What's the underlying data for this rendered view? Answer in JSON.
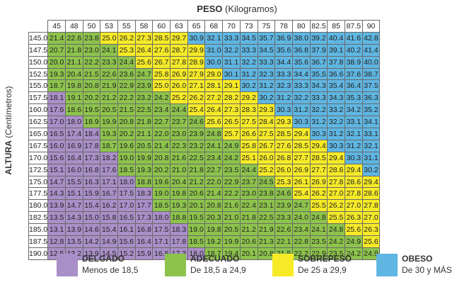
{
  "chart_data": {
    "type": "table",
    "x_title": "PESO",
    "x_unit": "(Kilogramos)",
    "y_title": "ALTURA",
    "y_unit": "(Centímetros)",
    "weights": [
      "45",
      "48",
      "50",
      "53",
      "55",
      "58",
      "60",
      "63",
      "65",
      "68",
      "70",
      "73",
      "75",
      "78",
      "80",
      "82.5",
      "85",
      "87.5",
      "90"
    ],
    "heights": [
      "145.0",
      "147.5",
      "150.0",
      "152.5",
      "155.0",
      "157.5",
      "160.0",
      "162.5",
      "165.0",
      "167.5",
      "170.0",
      "172.5",
      "175.0",
      "177.5",
      "180.0",
      "182.5",
      "185.0",
      "187.5",
      "190.0"
    ],
    "values": [
      [
        "21.4",
        "22.6",
        "23.8",
        "25.0",
        "26.2",
        "27.3",
        "28.5",
        "29.7",
        "30.9",
        "32.1",
        "33.3",
        "34.5",
        "35.7",
        "36.9",
        "38.0",
        "39.2",
        "40.4",
        "41.6",
        "42.8"
      ],
      [
        "20.7",
        "21.8",
        "23.0",
        "24.1",
        "25.3",
        "26.4",
        "27.6",
        "28.7",
        "29.9",
        "31.0",
        "32.2",
        "33.3",
        "34.5",
        "35.6",
        "36.8",
        "37.9",
        "39.1",
        "40.2",
        "41.4"
      ],
      [
        "20.0",
        "21.1",
        "22.2",
        "23.3",
        "24.4",
        "25.6",
        "26.7",
        "27.8",
        "28.9",
        "30.0",
        "31.1",
        "32.2",
        "33.3",
        "34.4",
        "35.6",
        "36.7",
        "37.8",
        "38.9",
        "40.0"
      ],
      [
        "19.3",
        "20.4",
        "21.5",
        "22.6",
        "23.6",
        "24.7",
        "25.8",
        "26.9",
        "27.9",
        "29.0",
        "30.1",
        "31.2",
        "32.3",
        "33.3",
        "34.4",
        "35.5",
        "36.6",
        "37.6",
        "38.7"
      ],
      [
        "18.7",
        "19.8",
        "20.8",
        "21.9",
        "22.9",
        "23.9",
        "25.0",
        "26.0",
        "27.1",
        "28.1",
        "29.1",
        "30.2",
        "31.2",
        "32.3",
        "33.3",
        "34.3",
        "35.4",
        "36.4",
        "37.5"
      ],
      [
        "18.1",
        "19.1",
        "20.2",
        "21.2",
        "22.2",
        "23.2",
        "24.2",
        "25.2",
        "26.2",
        "27.2",
        "28.2",
        "29.2",
        "30.2",
        "31.2",
        "32.2",
        "33.3",
        "34.3",
        "35.3",
        "36.3"
      ],
      [
        "17.6",
        "18.6",
        "19.5",
        "20.5",
        "21.5",
        "22.5",
        "23.4",
        "24.4",
        "25.4",
        "26.4",
        "27.3",
        "28.3",
        "29.3",
        "30.3",
        "31.2",
        "32.2",
        "33.2",
        "34.2",
        "35.2"
      ],
      [
        "17.0",
        "18.0",
        "18.9",
        "19.9",
        "20.8",
        "21.8",
        "22.7",
        "23.7",
        "24.6",
        "25.6",
        "26.5",
        "27.5",
        "28.4",
        "29.3",
        "30.3",
        "31.2",
        "32.2",
        "33.1",
        "34.1"
      ],
      [
        "16.5",
        "17.4",
        "18.4",
        "19.3",
        "20.2",
        "21.1",
        "22.0",
        "23.0",
        "23.9",
        "24.8",
        "25.7",
        "26.6",
        "27.5",
        "28.5",
        "29.4",
        "30.3",
        "31.2",
        "32.1",
        "33.1"
      ],
      [
        "16.0",
        "16.9",
        "17.8",
        "18.7",
        "19.6",
        "20.5",
        "21.4",
        "22.3",
        "23.2",
        "24.1",
        "24.9",
        "25.8",
        "26.7",
        "27.6",
        "28.5",
        "29.4",
        "30.3",
        "31.2",
        "32.1"
      ],
      [
        "15.6",
        "16.4",
        "17.3",
        "18.2",
        "19.0",
        "19.9",
        "20.8",
        "21.6",
        "22.5",
        "23.4",
        "24.2",
        "25.1",
        "26.0",
        "26.8",
        "27.7",
        "28.5",
        "29.4",
        "30.3",
        "31.1"
      ],
      [
        "15.1",
        "16.0",
        "16.8",
        "17.6",
        "18.5",
        "19.3",
        "20.2",
        "21.0",
        "21.8",
        "22.7",
        "23.5",
        "24.4",
        "25.2",
        "26.0",
        "26.9",
        "27.7",
        "28.6",
        "29.4",
        "30.2"
      ],
      [
        "14.7",
        "15.5",
        "16.3",
        "17.1",
        "18.0",
        "18.8",
        "19.6",
        "20.4",
        "21.2",
        "22.0",
        "22.9",
        "23.7",
        "24.5",
        "25.3",
        "26.1",
        "26.9",
        "27.8",
        "28.6",
        "29.4"
      ],
      [
        "14.3",
        "15.1",
        "15.9",
        "16.7",
        "17.5",
        "18.3",
        "19.0",
        "19.8",
        "20.6",
        "21.4",
        "22.2",
        "23.0",
        "23.8",
        "24.6",
        "25.4",
        "26.2",
        "27.0",
        "27.8",
        "28.6"
      ],
      [
        "13.9",
        "14.7",
        "15.4",
        "16.2",
        "17.0",
        "17.7",
        "18.5",
        "19.3",
        "20.1",
        "20.8",
        "21.6",
        "22.4",
        "23.1",
        "23.9",
        "24.7",
        "25.5",
        "26.2",
        "27.0",
        "27.8"
      ],
      [
        "13.5",
        "14.3",
        "15.0",
        "15.8",
        "16.5",
        "17.3",
        "18.0",
        "18.8",
        "19.5",
        "20.3",
        "21.0",
        "21.8",
        "22.5",
        "23.3",
        "24.0",
        "24.8",
        "25.5",
        "26.3",
        "27.0"
      ],
      [
        "13.1",
        "13.9",
        "14.6",
        "15.4",
        "16.1",
        "16.8",
        "17.5",
        "18.3",
        "19.0",
        "19.8",
        "20.5",
        "21.2",
        "21.9",
        "22.6",
        "23.4",
        "24.1",
        "24.8",
        "25.6",
        "26.3"
      ],
      [
        "12.8",
        "13.5",
        "14.2",
        "14.9",
        "15.6",
        "16.4",
        "17.1",
        "17.8",
        "18.5",
        "19.2",
        "19.9",
        "20.6",
        "21.3",
        "22.1",
        "22.8",
        "23.5",
        "24.2",
        "24.9",
        "25.6"
      ],
      [
        "12.5",
        "13.2",
        "13.9",
        "14.5",
        "15.2",
        "15.9",
        "16.6",
        "17.3",
        "18.0",
        "18.7",
        "19.4",
        "20.1",
        "20.8",
        "21.5",
        "22.2",
        "22.9",
        "23.5",
        "24.2",
        "24.9"
      ]
    ],
    "categories": [
      {
        "name": "DELGADO",
        "range": "Menos de 18,5",
        "color": "#a98fc7"
      },
      {
        "name": "ADECUADO",
        "range": "De 18,5 a 24,9",
        "color": "#8dc34c"
      },
      {
        "name": "SOBREPESO",
        "range": "De 25 a 29,9",
        "color": "#f6ea27"
      },
      {
        "name": "OBESO",
        "range": "De 30 y MÁS",
        "color": "#5fb6e2"
      }
    ]
  }
}
